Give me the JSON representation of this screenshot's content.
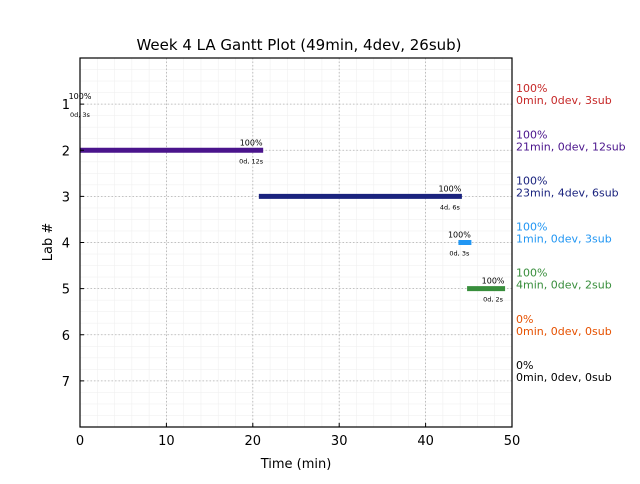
{
  "chart_data": {
    "type": "gantt",
    "title": "Week 4 LA Gantt Plot (49min, 4dev, 26sub)",
    "xlabel": "Time (min)",
    "ylabel": "Lab #",
    "xlim": [
      0,
      50
    ],
    "ylim": [
      8,
      0
    ],
    "xticks": [
      "0",
      "10",
      "20",
      "30",
      "40",
      "50"
    ],
    "xtick_values": [
      0,
      10,
      20,
      30,
      40,
      50
    ],
    "yticks": [
      "1",
      "2",
      "3",
      "4",
      "5",
      "6",
      "7"
    ],
    "ytick_values": [
      1,
      2,
      3,
      4,
      5,
      6,
      7
    ],
    "grid": true,
    "series": [
      {
        "lab": 1,
        "start": 0,
        "end": 0,
        "bar_pct_label": "100%",
        "bar_sub_label": "0d, 3s",
        "color": "#c62828",
        "summary_pct": "100%",
        "summary_text": "0min, 0dev, 3sub"
      },
      {
        "lab": 2,
        "start": 0,
        "end": 21.2,
        "bar_pct_label": "100%",
        "bar_sub_label": "0d, 12s",
        "color": "#4a148c",
        "summary_pct": "100%",
        "summary_text": "21min, 0dev, 12sub"
      },
      {
        "lab": 3,
        "start": 20.7,
        "end": 44.2,
        "bar_pct_label": "100%",
        "bar_sub_label": "4d, 6s",
        "color": "#1a237e",
        "summary_pct": "100%",
        "summary_text": "23min, 4dev, 6sub"
      },
      {
        "lab": 4,
        "start": 43.8,
        "end": 45.3,
        "bar_pct_label": "100%",
        "bar_sub_label": "0d, 3s",
        "color": "#2196f3",
        "summary_pct": "100%",
        "summary_text": "1min, 0dev, 3sub"
      },
      {
        "lab": 5,
        "start": 44.8,
        "end": 49.2,
        "bar_pct_label": "100%",
        "bar_sub_label": "0d, 2s",
        "color": "#388e3c",
        "summary_pct": "100%",
        "summary_text": "4min, 0dev, 2sub"
      },
      {
        "lab": 6,
        "start": null,
        "end": null,
        "bar_pct_label": "",
        "bar_sub_label": "",
        "color": "#e65100",
        "summary_pct": "0%",
        "summary_text": "0min, 0dev, 0sub"
      },
      {
        "lab": 7,
        "start": null,
        "end": null,
        "bar_pct_label": "",
        "bar_sub_label": "",
        "color": "#000000",
        "summary_pct": "0%",
        "summary_text": "0min, 0dev, 0sub"
      }
    ]
  }
}
